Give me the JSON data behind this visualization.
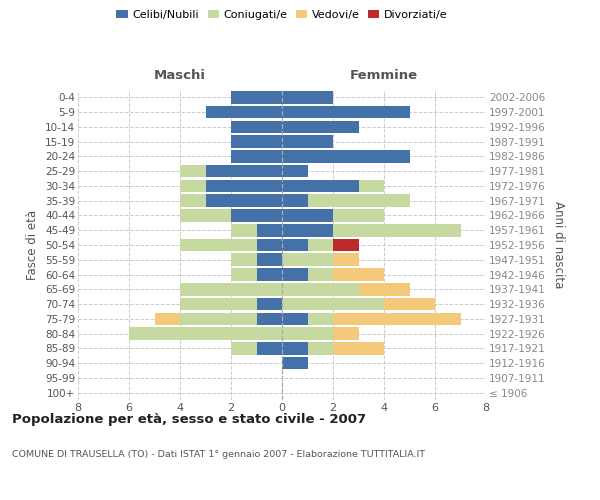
{
  "age_groups": [
    "100+",
    "95-99",
    "90-94",
    "85-89",
    "80-84",
    "75-79",
    "70-74",
    "65-69",
    "60-64",
    "55-59",
    "50-54",
    "45-49",
    "40-44",
    "35-39",
    "30-34",
    "25-29",
    "20-24",
    "15-19",
    "10-14",
    "5-9",
    "0-4"
  ],
  "birth_years": [
    "≤ 1906",
    "1907-1911",
    "1912-1916",
    "1917-1921",
    "1922-1926",
    "1927-1931",
    "1932-1936",
    "1937-1941",
    "1942-1946",
    "1947-1951",
    "1952-1956",
    "1957-1961",
    "1962-1966",
    "1967-1971",
    "1972-1976",
    "1977-1981",
    "1982-1986",
    "1987-1991",
    "1992-1996",
    "1997-2001",
    "2002-2006"
  ],
  "male": {
    "celibi": [
      0,
      0,
      0,
      1,
      0,
      1,
      1,
      0,
      1,
      1,
      1,
      1,
      2,
      3,
      3,
      3,
      2,
      2,
      2,
      3,
      2
    ],
    "coniugati": [
      0,
      0,
      0,
      1,
      6,
      3,
      3,
      4,
      1,
      1,
      3,
      1,
      2,
      1,
      1,
      1,
      0,
      0,
      0,
      0,
      0
    ],
    "vedovi": [
      0,
      0,
      0,
      0,
      0,
      1,
      0,
      0,
      0,
      0,
      0,
      0,
      0,
      0,
      0,
      0,
      0,
      0,
      0,
      0,
      0
    ],
    "divorziati": [
      0,
      0,
      0,
      0,
      0,
      0,
      0,
      0,
      0,
      0,
      0,
      0,
      0,
      0,
      0,
      0,
      0,
      0,
      0,
      0,
      0
    ]
  },
  "female": {
    "nubili": [
      0,
      0,
      1,
      1,
      0,
      1,
      0,
      0,
      1,
      0,
      1,
      2,
      2,
      1,
      3,
      1,
      5,
      2,
      3,
      5,
      2
    ],
    "coniugate": [
      0,
      0,
      0,
      1,
      2,
      1,
      4,
      3,
      1,
      2,
      1,
      5,
      2,
      4,
      1,
      0,
      0,
      0,
      0,
      0,
      0
    ],
    "vedove": [
      0,
      0,
      0,
      2,
      1,
      5,
      2,
      2,
      2,
      1,
      0,
      0,
      0,
      0,
      0,
      0,
      0,
      0,
      0,
      0,
      0
    ],
    "divorziate": [
      0,
      0,
      0,
      0,
      0,
      0,
      0,
      0,
      0,
      0,
      1,
      0,
      0,
      0,
      0,
      0,
      0,
      0,
      0,
      0,
      0
    ]
  },
  "colors": {
    "celibi_nubili": "#4472a8",
    "coniugati": "#c5d9a0",
    "vedovi": "#f5c97a",
    "divorziati": "#c0292b"
  },
  "xlim": 8,
  "title": "Popolazione per età, sesso e stato civile - 2007",
  "subtitle": "COMUNE DI TRAUSELLA (TO) - Dati ISTAT 1° gennaio 2007 - Elaborazione TUTTITALIA.IT",
  "ylabel_left": "Fasce di età",
  "ylabel_right": "Anni di nascita",
  "legend_labels": [
    "Celibi/Nubili",
    "Coniugati/e",
    "Vedovi/e",
    "Divorziati/e"
  ],
  "maschi_label": "Maschi",
  "femmine_label": "Femmine",
  "bg_color": "#ffffff",
  "grid_color": "#cccccc"
}
